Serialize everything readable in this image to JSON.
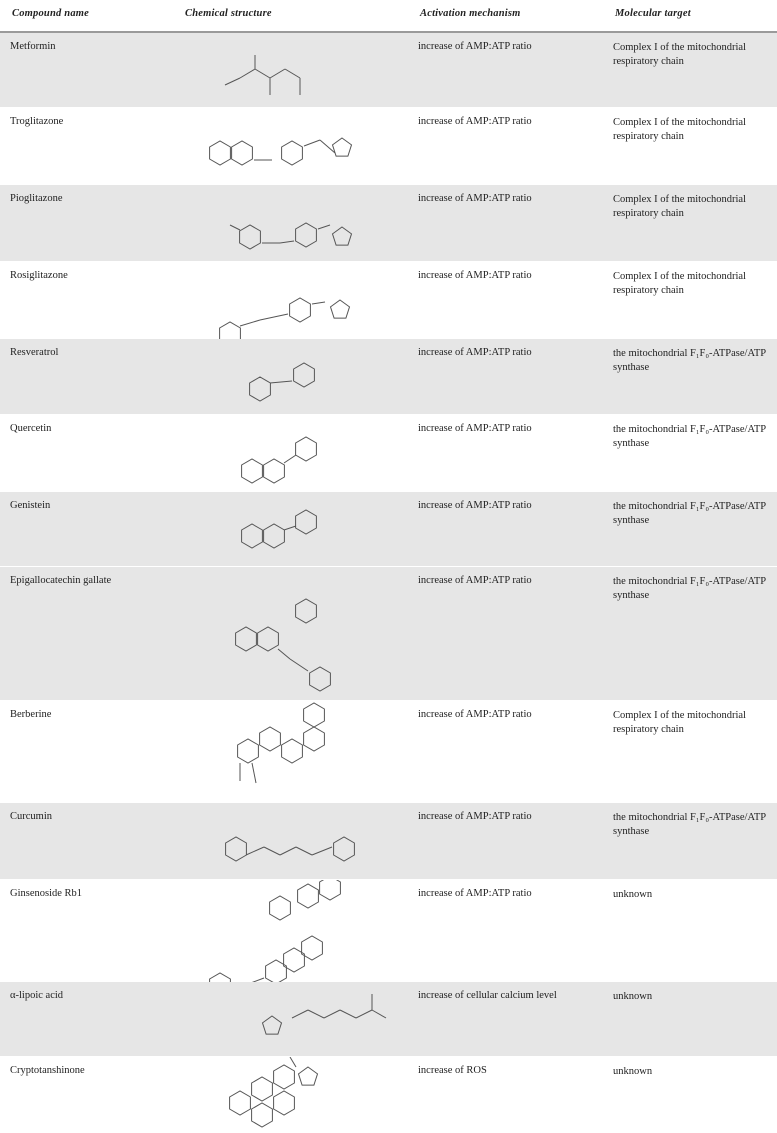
{
  "header": {
    "compound_name": "Compound  name",
    "chemical_structure": "Chemical  structure",
    "activation_mechanism": "Activation  mechanism",
    "molecular_target": "Molecular  target"
  },
  "rows": [
    {
      "name": "Metformin",
      "mechanism": "increase of AMP:ATP ratio",
      "target": "Complex  I of the mitochondrial respiratory chain"
    },
    {
      "name": "Troglitazone",
      "mechanism": "increase of AMP:ATP ratio",
      "target": "Complex  I of the mitochondrial respiratory chain"
    },
    {
      "name": "Pioglitazone",
      "mechanism": "increase of AMP:ATP ratio",
      "target": "Complex  I of the mitochondrial respiratory chain"
    },
    {
      "name": "Rosiglitazone",
      "mechanism": "increase of AMP:ATP ratio",
      "target": "Complex  I of the mitochondrial respiratory chain"
    },
    {
      "name": "Resveratrol",
      "mechanism": "increase of AMP:ATP ratio",
      "target": "the mitochondrial F₁F₀-ATPase/ATP synthase"
    },
    {
      "name": "Quercetin",
      "mechanism": "increase of AMP:ATP ratio",
      "target": "the mitochondrial F₁F₀-ATPase/ATP synthase"
    },
    {
      "name": "Genistein",
      "mechanism": "increase of AMP:ATP ratio",
      "target": "the mitochondrial F₁F₀-ATPase/ATP synthase"
    },
    {
      "name": "Epigallocatechin  gallate",
      "mechanism": "increase of AMP:ATP ratio",
      "target": "the mitochondrial F₁F₀-ATPase/ATP synthase"
    },
    {
      "name": "Berberine",
      "mechanism": "increase of AMP:ATP ratio",
      "target": "Complex  I of the mitochondrial respiratory chain"
    },
    {
      "name": "Curcumin",
      "mechanism": "increase of AMP:ATP ratio",
      "target": "the mitochondrial F₁F₀-ATPase/ATP synthase"
    },
    {
      "name": "Ginsenoside Rb1",
      "mechanism": "increase of AMP:ATP ratio",
      "target": "unknown"
    },
    {
      "name": "α-lipoic acid",
      "mechanism": "increase of cellular calcium  level",
      "target": "unknown"
    },
    {
      "name": "Cryptotanshinone",
      "mechanism": "increase of ROS",
      "target": "unknown"
    }
  ],
  "colors": {
    "row_shade": "#e6e6e6",
    "rule": "#9a9a9a",
    "text": "#222222"
  }
}
